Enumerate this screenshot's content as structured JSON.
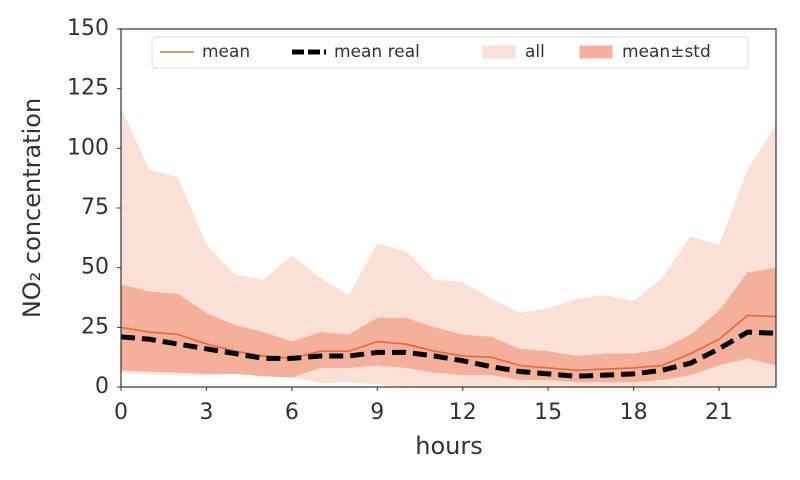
{
  "chart_data": {
    "type": "line",
    "xlabel": "hours",
    "ylabel": "NO₂ concentration",
    "x": [
      0,
      1,
      2,
      3,
      4,
      5,
      6,
      7,
      8,
      9,
      10,
      11,
      12,
      13,
      14,
      15,
      16,
      17,
      18,
      19,
      20,
      21,
      22,
      23
    ],
    "xlim": [
      0,
      23
    ],
    "ylim": [
      0,
      150
    ],
    "xticks": [
      0,
      3,
      6,
      9,
      12,
      15,
      18,
      21
    ],
    "yticks": [
      0,
      25,
      50,
      75,
      100,
      125,
      150
    ],
    "legend": "upper center",
    "series": [
      {
        "name": "mean",
        "color": "#e8663a",
        "values": [
          25,
          23,
          22,
          18,
          15,
          13,
          12,
          15,
          15,
          19,
          18,
          15,
          13,
          12.5,
          9,
          8,
          7,
          7.5,
          8,
          9,
          14,
          20,
          30,
          29.5
        ]
      },
      {
        "name": "mean real",
        "color": "#000000",
        "values": [
          21,
          20,
          18,
          16,
          14,
          12,
          12,
          13,
          13,
          14.5,
          14.5,
          13,
          11,
          8.5,
          6.5,
          5.5,
          4.5,
          5,
          5.5,
          7,
          10,
          16,
          23,
          22.5
        ]
      },
      {
        "name": "all",
        "color": "#fbe0d6",
        "upper": [
          117,
          91,
          88,
          59.5,
          47,
          45,
          55,
          45.7,
          38.5,
          60,
          57,
          45,
          44,
          37,
          31,
          33,
          37,
          38.5,
          36,
          45.7,
          63,
          59.5,
          91,
          110
        ],
        "lower": [
          6,
          5.5,
          5,
          5,
          5.5,
          4.5,
          4,
          1.5,
          2,
          1,
          0,
          0,
          0,
          0,
          0,
          0,
          0,
          0,
          0,
          0,
          0,
          0,
          0,
          0
        ]
      },
      {
        "name": "mean±std",
        "color": "#f4b09a",
        "upper": [
          43,
          40,
          39,
          31,
          26,
          23,
          19,
          23,
          22,
          29,
          29,
          25,
          22,
          21,
          16,
          15,
          13,
          14,
          14,
          16,
          22,
          32,
          48,
          50
        ],
        "lower": [
          7,
          6.5,
          6,
          5.5,
          5.5,
          4.5,
          4,
          8,
          8,
          9,
          8,
          6,
          5,
          5,
          3,
          3,
          2,
          2,
          2,
          3,
          5,
          9,
          12,
          9
        ]
      }
    ]
  }
}
